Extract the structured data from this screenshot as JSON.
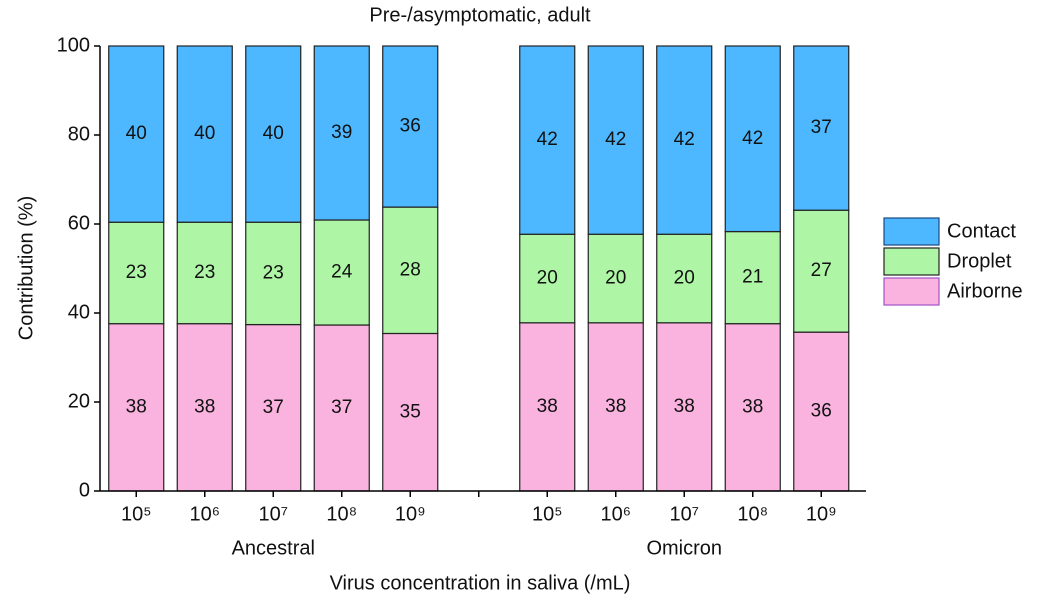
{
  "chart_data": {
    "type": "stacked_bar",
    "title": "Pre-/asymptomatic, adult",
    "xlabel": "Virus concentration in saliva (/mL)",
    "ylabel": "Contribution (%)",
    "categories": [
      "10⁵",
      "10⁶",
      "10⁷",
      "10⁸",
      "10⁹",
      null,
      "10⁵",
      "10⁶",
      "10⁷",
      "10⁸",
      "10⁹"
    ],
    "groups": [
      "Ancestral",
      "Omicron"
    ],
    "ylim": [
      0,
      100
    ],
    "yticks": [
      0,
      20,
      40,
      60,
      80,
      100
    ],
    "legend": "right",
    "series": [
      {
        "name": "Airborne",
        "color": "#f9b3de",
        "edge": "#a050c8",
        "values": [
          37.6,
          37.6,
          37.4,
          37.3,
          35.4,
          null,
          37.8,
          37.8,
          37.8,
          37.6,
          35.7
        ],
        "value_labels": [
          "38",
          "38",
          "37",
          "37",
          "35",
          null,
          "38",
          "38",
          "38",
          "38",
          "36"
        ]
      },
      {
        "name": "Droplet",
        "color": "#aef5a6",
        "edge": "#222222",
        "values": [
          22.8,
          22.8,
          23.0,
          23.6,
          28.4,
          null,
          19.9,
          19.9,
          19.9,
          20.7,
          27.4
        ],
        "value_labels": [
          "23",
          "23",
          "23",
          "24",
          "28",
          null,
          "20",
          "20",
          "20",
          "21",
          "27"
        ]
      },
      {
        "name": "Contact",
        "color": "#4db8ff",
        "edge": "#1a4a80",
        "values": [
          39.6,
          39.6,
          39.6,
          39.1,
          36.2,
          null,
          42.3,
          42.3,
          42.3,
          41.7,
          36.9
        ],
        "value_labels": [
          "40",
          "40",
          "40",
          "39",
          "36",
          null,
          "42",
          "42",
          "42",
          "42",
          "37"
        ]
      }
    ]
  }
}
